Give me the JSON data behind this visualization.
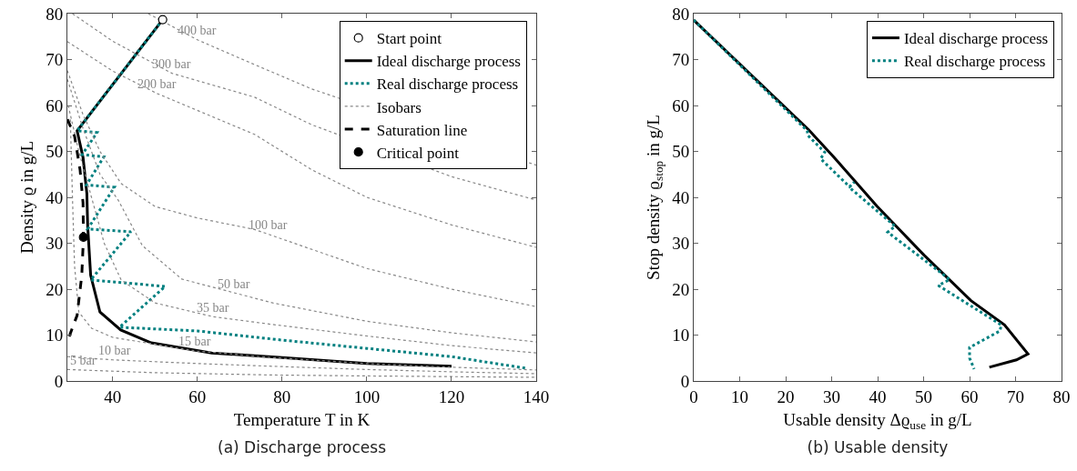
{
  "chart_data": [
    {
      "type": "line",
      "title": "(a) Discharge process",
      "xlabel": "Temperature T in K",
      "ylabel": "Density ϱ in g/L",
      "xlim": [
        29.3,
        140
      ],
      "ylim": [
        0,
        80
      ],
      "xticks": [
        40,
        60,
        80,
        100,
        120,
        140
      ],
      "yticks": [
        0,
        10,
        20,
        30,
        40,
        50,
        60,
        70,
        80
      ],
      "grid": false,
      "legend": "top right",
      "series": [
        {
          "name": "Start point",
          "type": "scatter",
          "marker": "circle",
          "color": "#ffffff",
          "x": [
            51.8
          ],
          "values": [
            78.7
          ]
        },
        {
          "name": "Ideal discharge process",
          "color": "#000000",
          "line_style": "solid",
          "x": [
            51.8,
            31.6,
            33,
            33.9,
            34.1,
            34.8,
            37,
            41.9,
            49.1,
            63.4,
            80,
            100,
            120
          ],
          "values": [
            78.7,
            54.5,
            48.7,
            40.8,
            33.7,
            23,
            15,
            11.1,
            8.3,
            6.1,
            5.1,
            3.8,
            3.2
          ]
        },
        {
          "name": "Real discharge process",
          "color": "#008080",
          "line_style": "dotted",
          "x": [
            51.8,
            31.6,
            36.3,
            32.8,
            37.9,
            33.8,
            40.4,
            34.1,
            44.3,
            34.8,
            52.4,
            41.6,
            60,
            80,
            100,
            120,
            137.4
          ],
          "values": [
            78.7,
            54.5,
            54.1,
            49.3,
            48.8,
            42.7,
            42.2,
            33.1,
            32.5,
            22,
            20.6,
            11.7,
            10.9,
            8.9,
            7.1,
            5.3,
            2.8
          ]
        },
        {
          "name": "Isobars",
          "color": "#888888",
          "line_style": "dotted",
          "x": [
            48.4,
            60,
            73.5,
            87,
            140
          ],
          "values": [
            80,
            74.3,
            68.9,
            63.6,
            47
          ]
        },
        {
          "color": "#888888",
          "line_style": "dotted",
          "x": [
            30.5,
            40,
            54,
            73.5,
            87,
            120,
            140
          ],
          "values": [
            80,
            74,
            67,
            61.8,
            55.8,
            44.5,
            39.4
          ]
        },
        {
          "color": "#888888",
          "line_style": "dotted",
          "x": [
            29.3,
            40,
            50.5,
            73.5,
            87,
            100,
            120,
            140
          ],
          "values": [
            73.9,
            67.5,
            62.6,
            53.7,
            46,
            40,
            34,
            29.1
          ]
        },
        {
          "color": "#888888",
          "line_style": "dotted",
          "x": [
            29.3,
            33,
            37,
            42,
            50,
            60,
            73.5,
            100,
            120,
            140
          ],
          "values": [
            67.6,
            58,
            50,
            43,
            38,
            35.5,
            33,
            24.5,
            20,
            16.2
          ]
        },
        {
          "color": "#888888",
          "line_style": "dotted",
          "x": [
            29.3,
            33,
            37,
            41.3,
            47,
            56.3,
            77.8,
            100,
            120,
            140
          ],
          "values": [
            65.7,
            55,
            45,
            39.4,
            29.5,
            22.2,
            17,
            13,
            10.5,
            8.5
          ]
        },
        {
          "color": "#888888",
          "line_style": "dotted",
          "x": [
            29.5,
            32,
            35,
            38,
            42,
            50,
            63.7,
            77.8,
            100,
            120,
            140
          ],
          "values": [
            60,
            50,
            40,
            30,
            22,
            17,
            14,
            12.3,
            9.8,
            7.7,
            6.1
          ]
        },
        {
          "color": "#888888",
          "line_style": "dotted",
          "x": [
            30,
            30.5,
            31,
            32,
            35,
            40,
            60,
            77.8,
            100,
            120,
            140
          ],
          "values": [
            57,
            40,
            25,
            15,
            11.5,
            9.5,
            6.5,
            5.1,
            3.8,
            3,
            2.4
          ]
        },
        {
          "color": "#888888",
          "line_style": "dotted",
          "x": [
            29.3,
            40,
            60,
            77.8,
            100,
            120,
            140
          ],
          "values": [
            5.3,
            4.6,
            3.8,
            3.2,
            2.5,
            2,
            1.6
          ]
        },
        {
          "color": "#888888",
          "line_style": "dotted",
          "x": [
            29.3,
            50,
            77.8,
            100,
            140
          ],
          "values": [
            2.5,
            1.8,
            1.3,
            1.1,
            0.8
          ]
        },
        {
          "name": "Saturation line",
          "color": "#000000",
          "line_style": "dashed",
          "x": [
            29.3,
            31,
            32.3,
            33,
            33.1,
            32.7,
            31.6,
            29.5
          ],
          "values": [
            57,
            53.3,
            46,
            38.8,
            31.3,
            23,
            14.3,
            9.1
          ]
        },
        {
          "name": "Critical point",
          "type": "scatter",
          "marker": "circle",
          "color": "#000000",
          "x": [
            33.1
          ],
          "values": [
            31.3
          ]
        }
      ],
      "annotations": [
        {
          "text": "400 bar",
          "x": 60,
          "y": 74.3
        },
        {
          "text": "300 bar",
          "x": 54,
          "y": 67
        },
        {
          "text": "200 bar",
          "x": 50.5,
          "y": 62.6
        },
        {
          "text": "100 bar",
          "x": 76.6,
          "y": 32
        },
        {
          "text": "50 bar",
          "x": 68.6,
          "y": 19.2
        },
        {
          "text": "35 bar",
          "x": 63.7,
          "y": 14
        },
        {
          "text": "15 bar",
          "x": 59.4,
          "y": 6.6
        },
        {
          "text": "10 bar",
          "x": 40.4,
          "y": 4.6
        },
        {
          "text": "5 bar",
          "x": 33,
          "y": 2.4
        }
      ]
    },
    {
      "type": "line",
      "title": "(b) Usable density",
      "xlabel": "Usable density Δϱ$_{use}$ in g/L",
      "ylabel": "Stop density ϱ$_{stop}$ in g/L",
      "xlim": [
        0,
        80
      ],
      "ylim": [
        0,
        80
      ],
      "xticks": [
        0,
        10,
        20,
        30,
        40,
        50,
        60,
        70,
        80
      ],
      "yticks": [
        0,
        10,
        20,
        30,
        40,
        50,
        60,
        70,
        80
      ],
      "grid": false,
      "legend": "top right",
      "series": [
        {
          "name": "Ideal discharge process",
          "color": "#000000",
          "line_style": "solid",
          "x": [
            0,
            25,
            30.6,
            39.9,
            50.1,
            60.3,
            67.6,
            72.7,
            70.2,
            64.3
          ],
          "values": [
            78.6,
            54.7,
            48.6,
            38,
            27.4,
            17.5,
            12.2,
            5.9,
            4.6,
            3
          ]
        },
        {
          "name": "Real discharge process",
          "color": "#008080",
          "line_style": "dotted",
          "x": [
            0,
            24.7,
            24.8,
            28.5,
            27.6,
            33.9,
            34.9,
            33.8,
            43.8,
            42.2,
            55.7,
            53.2,
            66.9,
            66.6,
            60,
            60,
            61
          ],
          "values": [
            78.6,
            54.5,
            53.5,
            49.8,
            48.4,
            42.3,
            43.3,
            42.2,
            33.7,
            32.4,
            22.1,
            20.8,
            12.2,
            10.9,
            7.3,
            5,
            2.6
          ]
        }
      ]
    }
  ]
}
